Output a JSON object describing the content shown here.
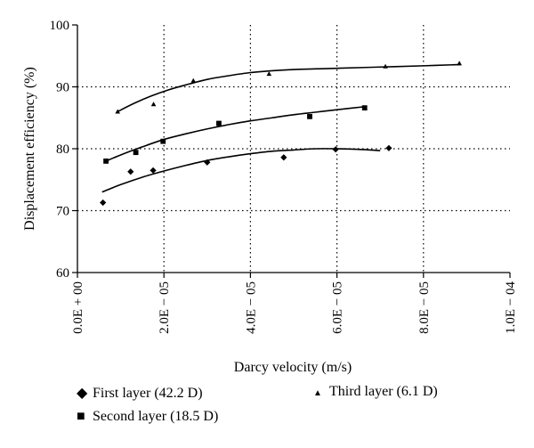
{
  "chart_data": {
    "type": "scatter",
    "xlabel": "Darcy velocity (m/s)",
    "ylabel": "Displacement efficiency (%)",
    "xlim": [
      0,
      0.0001
    ],
    "ylim": [
      60,
      100
    ],
    "x_tick_labels": [
      "0.0E + 00",
      "2.0E − 05",
      "4.0E − 05",
      "6.0E − 05",
      "8.0E − 05",
      "1.0E − 04"
    ],
    "y_tick_labels": [
      "60",
      "70",
      "80",
      "90",
      "100"
    ],
    "grid": "dotted",
    "legend_position": "bottom",
    "series": [
      {
        "name": "First layer (42.2 D)",
        "marker": "diamond",
        "x": [
          5.9e-06,
          1.23e-05,
          1.75e-05,
          3e-05,
          4.77e-05,
          5.97e-05,
          7.2e-05
        ],
        "y": [
          71.3,
          76.3,
          76.5,
          77.8,
          78.6,
          79.9,
          80.1
        ],
        "trend_x": [
          5.7e-06,
          1e-05,
          1.5e-05,
          2e-05,
          2.5e-05,
          3e-05,
          3.5e-05,
          4e-05,
          4.5e-05,
          5e-05,
          5.5e-05,
          6e-05,
          6.5e-05,
          7e-05
        ],
        "trend_y": [
          73.0,
          74.2,
          75.4,
          76.4,
          77.3,
          78.1,
          78.7,
          79.2,
          79.6,
          79.8,
          80.0,
          80.0,
          79.9,
          79.7
        ]
      },
      {
        "name": "Second layer (18.5 D)",
        "marker": "square",
        "x": [
          6.6e-06,
          1.35e-05,
          1.98e-05,
          3.27e-05,
          5.37e-05,
          6.64e-05
        ],
        "y": [
          78.0,
          79.4,
          81.2,
          84.1,
          85.2,
          86.6
        ],
        "trend_x": [
          6.6e-06,
          1e-05,
          1.5e-05,
          2e-05,
          2.5e-05,
          3e-05,
          3.5e-05,
          4e-05,
          4.5e-05,
          5e-05,
          5.5e-05,
          6e-05,
          6.65e-05
        ],
        "trend_y": [
          78.0,
          79.0,
          80.3,
          81.5,
          82.4,
          83.2,
          83.9,
          84.5,
          85.0,
          85.5,
          85.9,
          86.3,
          86.8
        ]
      },
      {
        "name": "Third layer (6.1 D)",
        "marker": "triangle",
        "x": [
          9.3e-06,
          1.76e-05,
          2.68e-05,
          4.43e-05,
          7.12e-05,
          8.83e-05
        ],
        "y": [
          86.0,
          87.2,
          91.0,
          92.1,
          93.3,
          93.8
        ],
        "trend_x": [
          9.3e-06,
          1.3e-05,
          1.7e-05,
          2.1e-05,
          2.5e-05,
          3e-05,
          3.5e-05,
          4e-05,
          4.5e-05,
          5e-05,
          5.5e-05,
          6e-05,
          7e-05,
          8e-05,
          8.85e-05
        ],
        "trend_y": [
          86.0,
          87.3,
          88.5,
          89.5,
          90.3,
          91.2,
          91.8,
          92.3,
          92.6,
          92.8,
          92.9,
          93.0,
          93.2,
          93.4,
          93.6
        ]
      }
    ]
  }
}
